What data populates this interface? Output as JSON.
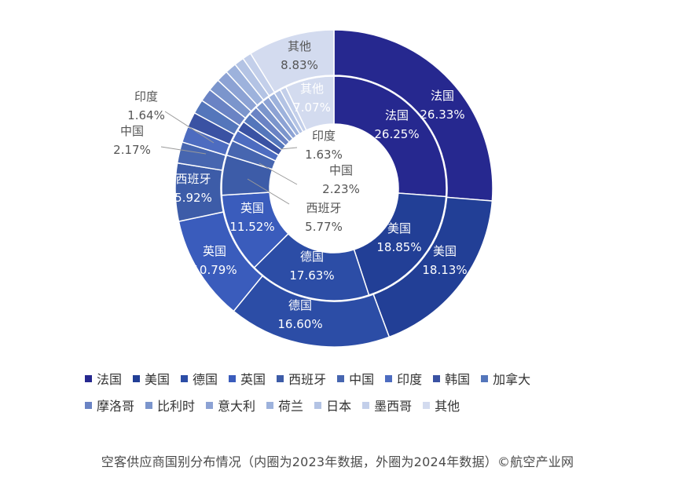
{
  "caption": "空客供应商国别分布情况（内圈为2023年数据，外圈为2024年数据）©航空产业网",
  "chart_data": {
    "type": "donut",
    "categories": [
      "法国",
      "美国",
      "德国",
      "英国",
      "西班牙",
      "中国",
      "印度",
      "韩国",
      "加拿大",
      "摩洛哥",
      "比利时",
      "意大利",
      "荷兰",
      "日本",
      "墨西哥",
      "其他"
    ],
    "colors": [
      "#26288f",
      "#223f96",
      "#2c4da6",
      "#3a5cbc",
      "#3d5ca8",
      "#4766b0",
      "#4d6cc0",
      "#3a52a3",
      "#5476bb",
      "#6a83c4",
      "#7b95cc",
      "#8ca2d4",
      "#9db2dc",
      "#b3c3e4",
      "#c3cfea",
      "#d3dbef"
    ],
    "series": [
      {
        "ring": "inner",
        "values": [
          26.25,
          18.85,
          17.63,
          11.52,
          5.77,
          2.23,
          1.63,
          1.5,
          1.4,
          1.3,
          1.2,
          1.1,
          1.0,
          0.95,
          0.9,
          7.07
        ]
      },
      {
        "ring": "outer",
        "values": [
          26.33,
          18.13,
          16.6,
          10.79,
          5.92,
          2.17,
          1.64,
          1.55,
          1.45,
          1.35,
          1.25,
          1.2,
          1.15,
          1.0,
          0.91,
          8.83
        ]
      }
    ],
    "data_labels": {
      "inner": [
        {
          "category": "法国",
          "pct": "26.25%"
        },
        {
          "category": "美国",
          "pct": "18.85%"
        },
        {
          "category": "德国",
          "pct": "17.63%"
        },
        {
          "category": "英国",
          "pct": "11.52%"
        },
        {
          "category": "西班牙",
          "pct": "5.77%"
        },
        {
          "category": "中国",
          "pct": "2.23%"
        },
        {
          "category": "印度",
          "pct": "1.63%"
        },
        {
          "category": "其他",
          "pct": "7.07%"
        }
      ],
      "outer": [
        {
          "category": "法国",
          "pct": "26.33%"
        },
        {
          "category": "美国",
          "pct": "18.13%"
        },
        {
          "category": "德国",
          "pct": "16.60%"
        },
        {
          "category": "英国",
          "pct": "10.79%"
        },
        {
          "category": "西班牙",
          "pct": "5.92%"
        },
        {
          "category": "中国",
          "pct": "2.17%"
        },
        {
          "category": "印度",
          "pct": "1.64%"
        },
        {
          "category": "其他",
          "pct": "8.83%"
        }
      ]
    },
    "legend_position": "bottom"
  }
}
